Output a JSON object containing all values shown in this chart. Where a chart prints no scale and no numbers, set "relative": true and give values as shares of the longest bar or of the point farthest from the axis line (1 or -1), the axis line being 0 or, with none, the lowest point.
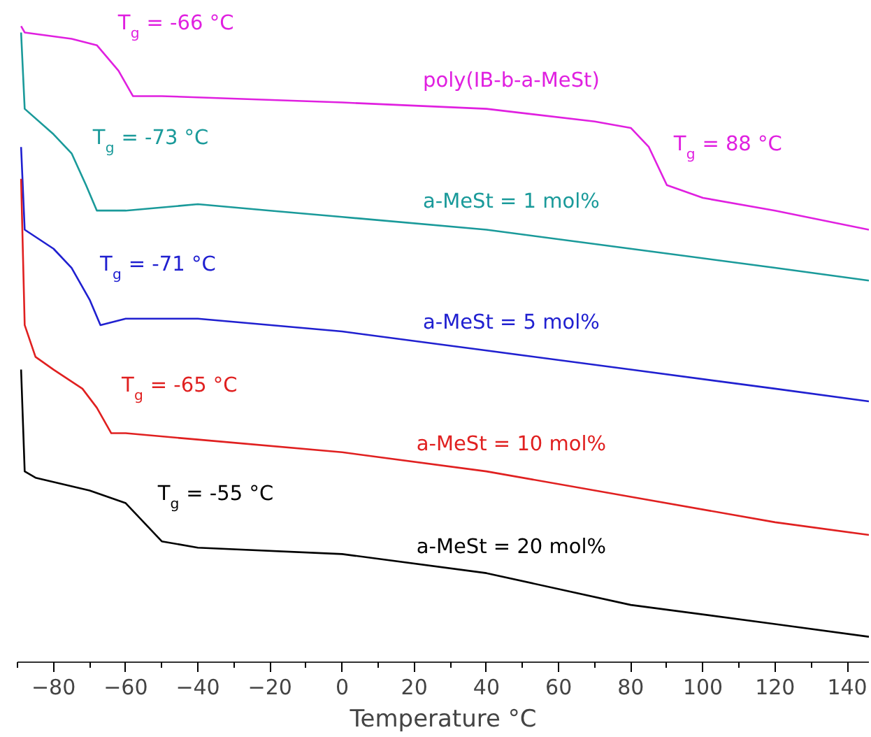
{
  "chart_data": {
    "type": "line",
    "relative": true,
    "xlabel": "Temperature °C",
    "xlim": [
      -90,
      146
    ],
    "xticks": [
      -80,
      -60,
      -40,
      -20,
      0,
      20,
      40,
      60,
      80,
      100,
      120,
      140
    ],
    "grid": false,
    "tick_labels": "x",
    "series": [
      {
        "name": "poly(IB-b-a-MeSt)",
        "color": "#e020e0",
        "x": [
          -89,
          -88,
          -75,
          -68,
          -62,
          -58,
          -50,
          0,
          40,
          70,
          80,
          85,
          90,
          100,
          120,
          146
        ],
        "values": [
          1.0,
          0.99,
          0.98,
          0.97,
          0.93,
          0.89,
          0.89,
          0.88,
          0.87,
          0.85,
          0.84,
          0.81,
          0.75,
          0.73,
          0.71,
          0.68
        ]
      },
      {
        "name": "a-MeSt = 1 mol%",
        "color": "#1a9a9a",
        "x": [
          -89,
          -88,
          -80,
          -75,
          -71,
          -68,
          -60,
          -40,
          -20,
          0,
          40,
          80,
          120,
          146
        ],
        "values": [
          0.99,
          0.87,
          0.83,
          0.8,
          0.75,
          0.71,
          0.71,
          0.72,
          0.71,
          0.7,
          0.68,
          0.65,
          0.62,
          0.6
        ]
      },
      {
        "name": "a-MeSt = 5 mol%",
        "color": "#2020d0",
        "x": [
          -89,
          -88,
          -80,
          -75,
          -70,
          -67,
          -60,
          -40,
          0,
          40,
          80,
          120,
          146
        ],
        "values": [
          0.81,
          0.68,
          0.65,
          0.62,
          0.57,
          0.53,
          0.54,
          0.54,
          0.52,
          0.49,
          0.46,
          0.43,
          0.41
        ]
      },
      {
        "name": "a-MeSt = 10 mol%",
        "color": "#e02020",
        "x": [
          -89,
          -88,
          -85,
          -80,
          -72,
          -68,
          -64,
          -60,
          -40,
          0,
          40,
          80,
          120,
          146
        ],
        "values": [
          0.76,
          0.53,
          0.48,
          0.46,
          0.43,
          0.4,
          0.36,
          0.36,
          0.35,
          0.33,
          0.3,
          0.26,
          0.22,
          0.2
        ]
      },
      {
        "name": "a-MeSt = 20 mol%",
        "color": "#000000",
        "x": [
          -89,
          -88,
          -85,
          -70,
          -60,
          -55,
          -50,
          -40,
          0,
          40,
          80,
          120,
          146
        ],
        "values": [
          0.46,
          0.3,
          0.29,
          0.27,
          0.25,
          0.22,
          0.19,
          0.18,
          0.17,
          0.14,
          0.09,
          0.06,
          0.04
        ]
      }
    ],
    "annotations": [
      {
        "text": "T$_{g}$ = -66 °C",
        "x": -66,
        "y": 0.96
      },
      {
        "text": "T$_{g}$ = 88 °C",
        "x": 88,
        "y": 0.77
      },
      {
        "text": "T$_{g}$ = -73 °C",
        "x": -73,
        "y": 0.78
      },
      {
        "text": "T$_{g}$ = -71 °C",
        "x": -71,
        "y": 0.58
      },
      {
        "text": "T$_{g}$ = -65 °C",
        "x": -65,
        "y": 0.39
      },
      {
        "text": "T$_{g}$ = -55 °C",
        "x": -55,
        "y": 0.22
      }
    ]
  }
}
